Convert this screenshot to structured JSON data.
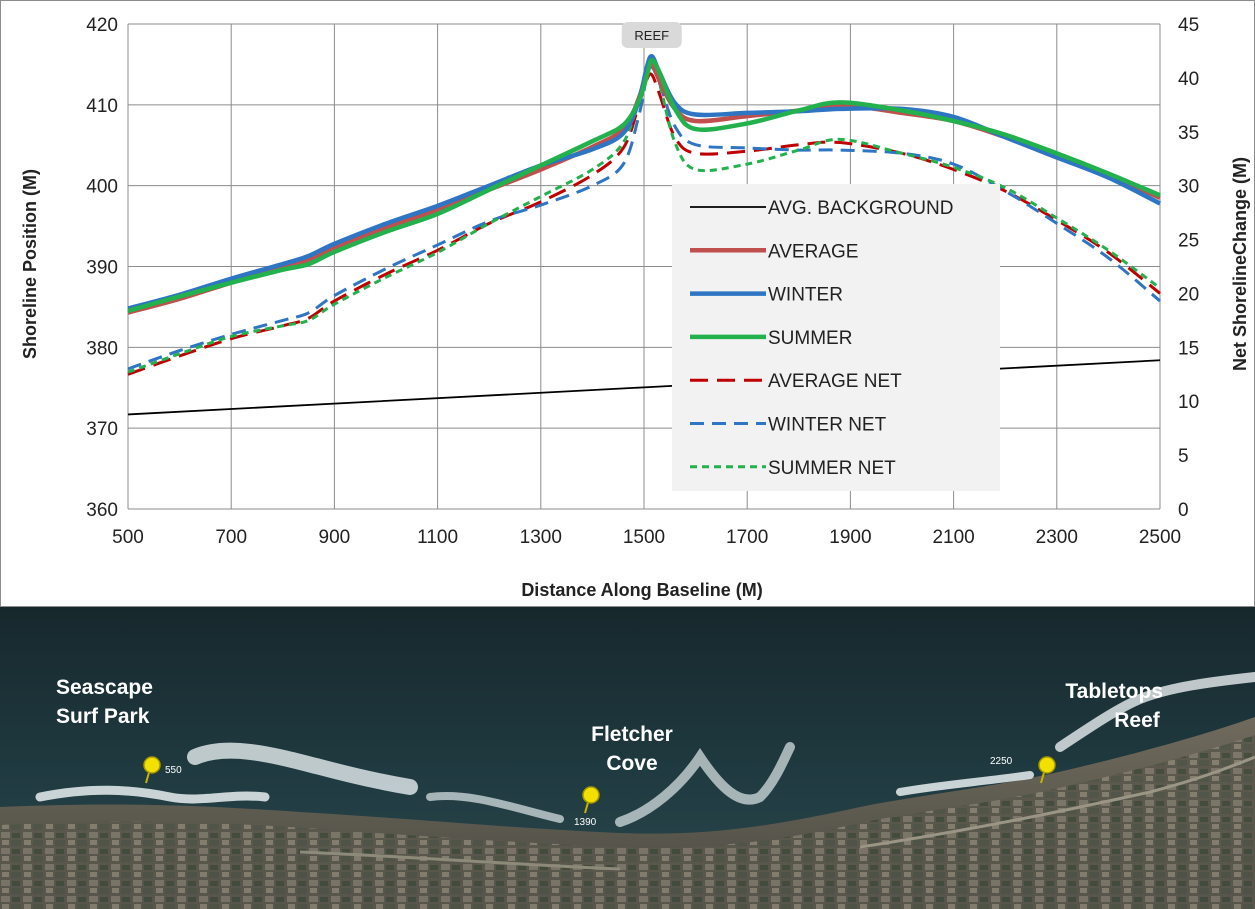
{
  "chart_data": {
    "type": "line",
    "xlabel": "Distance Along Baseline (M)",
    "ylabel_left": "Shoreline Position (M)",
    "ylabel_right": "Net ShorelineChange (M)",
    "xlim": [
      500,
      2500
    ],
    "xticks": [
      500,
      700,
      900,
      1100,
      1300,
      1500,
      1700,
      1900,
      2100,
      2300,
      2500
    ],
    "ylim_left": [
      360,
      420
    ],
    "yticks_left": [
      360,
      370,
      380,
      390,
      400,
      410,
      420
    ],
    "ylim_right": [
      0,
      45
    ],
    "yticks_right": [
      0,
      5,
      10,
      15,
      20,
      25,
      30,
      35,
      40,
      45
    ],
    "grid": true,
    "legend_position": "center-right",
    "annotation": {
      "label": "REEF",
      "x": 1515
    },
    "series": [
      {
        "name": "AVG. BACKGROUND",
        "axis": "left",
        "color": "#000000",
        "style": "solid",
        "width": 1.8,
        "x": [
          500,
          2500
        ],
        "y": [
          371.7,
          378.4
        ]
      },
      {
        "name": "AVERAGE",
        "axis": "left",
        "color": "#c0504d",
        "style": "solid",
        "width": 4.5,
        "x": [
          500,
          600,
          700,
          800,
          850,
          900,
          1000,
          1100,
          1200,
          1300,
          1400,
          1460,
          1490,
          1505,
          1515,
          1530,
          1560,
          1600,
          1700,
          1800,
          1880,
          2000,
          2100,
          2200,
          2300,
          2400,
          2500
        ],
        "y": [
          384.3,
          386.0,
          388.0,
          389.8,
          390.8,
          392.3,
          394.8,
          397.0,
          399.5,
          402.0,
          404.8,
          407.0,
          410.8,
          414.2,
          415.2,
          413.0,
          409.5,
          408.0,
          408.6,
          409.3,
          410.0,
          409.0,
          408.0,
          406.0,
          403.5,
          401.3,
          398.5
        ]
      },
      {
        "name": "WINTER",
        "axis": "left",
        "color": "#2e75c3",
        "style": "solid",
        "width": 4.5,
        "x": [
          500,
          600,
          700,
          800,
          850,
          900,
          1000,
          1100,
          1200,
          1300,
          1400,
          1460,
          1490,
          1505,
          1515,
          1530,
          1560,
          1600,
          1700,
          1800,
          1880,
          2000,
          2100,
          2200,
          2300,
          2400,
          2500
        ],
        "y": [
          384.8,
          386.5,
          388.5,
          390.3,
          391.3,
          392.8,
          395.3,
          397.5,
          400.0,
          402.5,
          404.5,
          406.5,
          410.5,
          414.5,
          416.0,
          414.0,
          410.2,
          408.8,
          409.0,
          409.2,
          409.5,
          409.5,
          408.5,
          406.0,
          403.5,
          401.0,
          397.8
        ]
      },
      {
        "name": "SUMMER",
        "axis": "left",
        "color": "#22b14c",
        "style": "solid",
        "width": 4.5,
        "x": [
          500,
          600,
          700,
          800,
          850,
          900,
          1000,
          1100,
          1200,
          1300,
          1400,
          1460,
          1490,
          1505,
          1515,
          1530,
          1560,
          1600,
          1700,
          1800,
          1880,
          2000,
          2100,
          2200,
          2300,
          2400,
          2500
        ],
        "y": [
          384.5,
          386.3,
          388.0,
          389.6,
          390.3,
          391.8,
          394.3,
          396.5,
          399.5,
          402.5,
          405.5,
          407.5,
          410.5,
          413.5,
          415.5,
          414.0,
          409.5,
          407.0,
          407.7,
          409.3,
          410.3,
          409.3,
          408.0,
          406.3,
          404.0,
          401.5,
          398.8
        ]
      },
      {
        "name": "AVERAGE NET",
        "axis": "right",
        "color": "#c00000",
        "style": "dash-long",
        "width": 3,
        "x": [
          500,
          600,
          700,
          800,
          850,
          900,
          1000,
          1100,
          1200,
          1300,
          1400,
          1460,
          1490,
          1505,
          1515,
          1530,
          1560,
          1600,
          1700,
          1800,
          1880,
          2000,
          2100,
          2200,
          2300,
          2400,
          2500
        ],
        "y": [
          12.5,
          14.2,
          15.8,
          17.0,
          17.7,
          19.3,
          21.8,
          24.0,
          26.5,
          28.5,
          31.0,
          33.5,
          37.5,
          39.8,
          40.3,
          38.5,
          34.5,
          33.0,
          33.2,
          33.8,
          34.0,
          33.0,
          31.5,
          29.5,
          26.8,
          23.8,
          20.0
        ]
      },
      {
        "name": "WINTER NET",
        "axis": "right",
        "color": "#2e75c3",
        "style": "dash-medium",
        "width": 3,
        "x": [
          500,
          600,
          700,
          800,
          850,
          900,
          1000,
          1100,
          1200,
          1300,
          1400,
          1460,
          1490,
          1505,
          1515,
          1530,
          1560,
          1600,
          1700,
          1800,
          1880,
          2000,
          2100,
          2200,
          2300,
          2400,
          2500
        ],
        "y": [
          13.0,
          14.7,
          16.2,
          17.5,
          18.2,
          19.8,
          22.3,
          24.5,
          26.7,
          28.2,
          30.0,
          32.0,
          36.5,
          40.0,
          41.0,
          39.5,
          35.5,
          33.8,
          33.5,
          33.3,
          33.3,
          33.0,
          32.0,
          29.5,
          26.5,
          23.3,
          19.3
        ]
      },
      {
        "name": "SUMMER NET",
        "axis": "right",
        "color": "#22b14c",
        "style": "dash-short",
        "width": 3,
        "x": [
          500,
          600,
          700,
          800,
          850,
          900,
          1000,
          1100,
          1200,
          1300,
          1400,
          1460,
          1490,
          1505,
          1515,
          1530,
          1560,
          1600,
          1700,
          1800,
          1880,
          2000,
          2100,
          2200,
          2300,
          2400,
          2500
        ],
        "y": [
          12.7,
          14.4,
          16.0,
          17.0,
          17.5,
          19.0,
          21.5,
          23.8,
          26.5,
          29.0,
          31.5,
          34.0,
          38.0,
          40.2,
          41.3,
          39.5,
          34.0,
          31.5,
          32.0,
          33.3,
          34.3,
          33.0,
          31.7,
          29.8,
          27.0,
          24.0,
          20.5
        ]
      }
    ]
  },
  "photo": {
    "places": [
      {
        "lines": [
          "Seascape",
          "Surf Park"
        ]
      },
      {
        "lines": [
          "Fletcher",
          "Cove"
        ]
      },
      {
        "lines": [
          "Tabletops",
          "Reef"
        ]
      }
    ],
    "pins": [
      {
        "label": "550"
      },
      {
        "label": "1390"
      },
      {
        "label": "2250"
      }
    ]
  }
}
